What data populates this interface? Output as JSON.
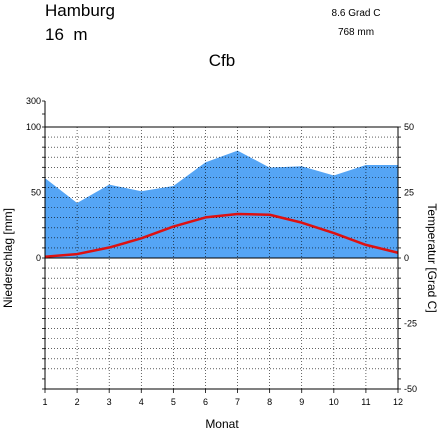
{
  "station": {
    "name": "Hamburg",
    "elevation": "16  m",
    "mean_temperature": "8.6 Grad C",
    "annual_precipitation": "768 mm",
    "climate_class": "Cfb"
  },
  "chart_data": {
    "type": "area",
    "title": "Cfb",
    "xlabel": "Monat",
    "ylabel_left": "Niederschlag [mm]",
    "ylabel_right": "Temperatur [Grad C]",
    "x": [
      1,
      2,
      3,
      4,
      5,
      6,
      7,
      8,
      9,
      10,
      11,
      12
    ],
    "x_ticks": [
      "1",
      "2",
      "3",
      "4",
      "5",
      "6",
      "7",
      "8",
      "9",
      "10",
      "11",
      "12"
    ],
    "precip_ticks": [
      "0",
      "50",
      "100",
      "300"
    ],
    "temp_ticks": [
      "-50",
      "-25",
      "0",
      "25",
      "50"
    ],
    "precip_range": [
      0,
      100
    ],
    "temp_range": [
      -50,
      50
    ],
    "grid": true,
    "series": [
      {
        "axis": "left",
        "color": "#55a5f5",
        "values": [
          61,
          42,
          56,
          51,
          55,
          73,
          82,
          69,
          70,
          63,
          71,
          71
        ]
      },
      {
        "axis": "right",
        "color": "#dd1111",
        "values": [
          0.5,
          1.5,
          4.0,
          7.5,
          12.0,
          15.5,
          16.8,
          16.5,
          13.5,
          9.5,
          5.0,
          2.0
        ]
      }
    ]
  }
}
